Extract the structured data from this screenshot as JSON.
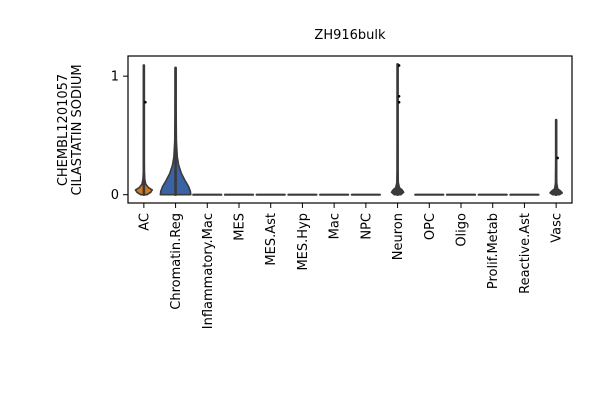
{
  "chart_data": {
    "type": "violin",
    "title": "ZH916bulk",
    "ylabel_lines": [
      "CHEMBL1201057",
      "CILASTATIN SODIUM"
    ],
    "ylim": [
      -0.07,
      1.17
    ],
    "yticks": [
      {
        "value": 0,
        "label": "0"
      },
      {
        "value": 1,
        "label": "1"
      }
    ],
    "categories": [
      "AC",
      "Chromatin.Reg",
      "Inflammatory.Mac",
      "MES",
      "MES.Ast",
      "MES.Hyp",
      "Mac",
      "NPC",
      "Neuron",
      "OPC",
      "Oligo",
      "Prolif.Metab",
      "Reactive.Ast",
      "Vasc"
    ],
    "colors": {
      "AC": "#d47a1e",
      "Chromatin.Reg": "#3a63a6",
      "default": "#3a3a3a",
      "outline": "#3a3a3a"
    },
    "violins": [
      {
        "category": "AC",
        "max": 1.09,
        "points": [
          0.78
        ],
        "profile": [
          [
            0,
            0.2
          ],
          [
            0.02,
            0.45
          ],
          [
            0.04,
            0.55
          ],
          [
            0.06,
            0.3
          ],
          [
            0.09,
            0.12
          ],
          [
            0.13,
            0.06
          ],
          [
            0.2,
            0.03
          ],
          [
            0.35,
            0.02
          ],
          [
            0.7,
            0.015
          ],
          [
            1.09,
            0.012
          ]
        ]
      },
      {
        "category": "Chromatin.Reg",
        "max": 1.07,
        "points": [],
        "profile": [
          [
            0,
            1.0
          ],
          [
            0.03,
            0.97
          ],
          [
            0.07,
            0.85
          ],
          [
            0.12,
            0.62
          ],
          [
            0.18,
            0.38
          ],
          [
            0.25,
            0.2
          ],
          [
            0.32,
            0.11
          ],
          [
            0.45,
            0.055
          ],
          [
            0.7,
            0.035
          ],
          [
            1.07,
            0.03
          ]
        ]
      },
      {
        "category": "Inflammatory.Mac",
        "max": 0,
        "points": [],
        "profile": []
      },
      {
        "category": "MES",
        "max": 0,
        "points": [],
        "profile": []
      },
      {
        "category": "MES.Ast",
        "max": 0,
        "points": [],
        "profile": []
      },
      {
        "category": "MES.Hyp",
        "max": 0,
        "points": [],
        "profile": []
      },
      {
        "category": "Mac",
        "max": 0,
        "points": [],
        "profile": []
      },
      {
        "category": "NPC",
        "max": 0,
        "points": [],
        "profile": []
      },
      {
        "category": "Neuron",
        "max": 1.1,
        "points": [
          0.78,
          0.83,
          1.09
        ],
        "profile": [
          [
            0,
            0.22
          ],
          [
            0.02,
            0.4
          ],
          [
            0.04,
            0.3
          ],
          [
            0.06,
            0.12
          ],
          [
            0.1,
            0.05
          ],
          [
            0.2,
            0.025
          ],
          [
            0.5,
            0.02
          ],
          [
            1.1,
            0.02
          ]
        ]
      },
      {
        "category": "OPC",
        "max": 0,
        "points": [],
        "profile": []
      },
      {
        "category": "Oligo",
        "max": 0,
        "points": [],
        "profile": []
      },
      {
        "category": "Prolif.Metab",
        "max": 0,
        "points": [],
        "profile": []
      },
      {
        "category": "Reactive.Ast",
        "max": 0,
        "points": [],
        "profile": []
      },
      {
        "category": "Vasc",
        "max": 0.63,
        "points": [
          0.31
        ],
        "profile": [
          [
            0,
            0.22
          ],
          [
            0.015,
            0.4
          ],
          [
            0.03,
            0.3
          ],
          [
            0.05,
            0.1
          ],
          [
            0.1,
            0.04
          ],
          [
            0.3,
            0.02
          ],
          [
            0.63,
            0.015
          ]
        ]
      }
    ]
  }
}
